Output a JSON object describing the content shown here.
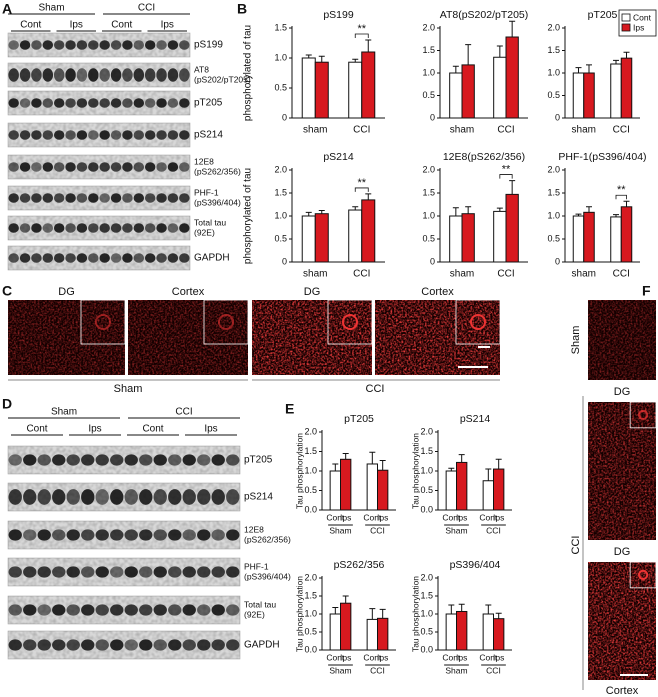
{
  "panel_labels": [
    "A",
    "B",
    "C",
    "D",
    "E",
    "F"
  ],
  "blot_a": {
    "groups": [
      "Sham",
      "CCI"
    ],
    "lanes": [
      "Cont",
      "Ips",
      "Cont",
      "Ips"
    ],
    "bands": [
      [
        "pS199"
      ],
      [
        "AT8",
        "(pS202/pT205)"
      ],
      [
        "pT205"
      ],
      [
        "pS214"
      ],
      [
        "12E8",
        "(pS262/356)"
      ],
      [
        "PHF-1",
        "(pS396/404)"
      ],
      [
        "Total tau",
        "(92E)"
      ],
      [
        "GAPDH"
      ]
    ]
  },
  "blot_d": {
    "groups": [
      "Sham",
      "CCI"
    ],
    "lanes": [
      "Cont",
      "Ips",
      "Cont",
      "Ips"
    ],
    "bands": [
      [
        "pT205"
      ],
      [
        "pS214"
      ],
      [
        "12E8",
        "(pS262/356)"
      ],
      [
        "PHF-1",
        "(pS396/404)"
      ],
      [
        "Total tau",
        "(92E)"
      ],
      [
        "GAPDH"
      ]
    ]
  },
  "micro_c": {
    "labels": [
      "DG",
      "Cortex",
      "DG",
      "Cortex"
    ],
    "groups": [
      "Sham",
      "CCI"
    ]
  },
  "micro_f": {
    "groups": [
      "Sham",
      "CCI"
    ],
    "labels": [
      "DG",
      "DG",
      "Cortex"
    ]
  },
  "chart_data": [
    {
      "type": "bar",
      "title": "pS199",
      "ylabel": "phosphorylated of tau",
      "categories": [
        "sham",
        "CCI"
      ],
      "series": [
        {
          "name": "Cont",
          "color": "#ffffff",
          "values": [
            1.0,
            0.93
          ],
          "errors": [
            0.05,
            0.05
          ]
        },
        {
          "name": "Ips",
          "color": "#d7191f",
          "values": [
            0.93,
            1.1
          ],
          "errors": [
            0.1,
            0.2
          ]
        }
      ],
      "ylim": [
        0,
        1.5
      ],
      "yticks": [
        0,
        0.5,
        {
          "value": 1,
          "label": "1.0"
        },
        1.5
      ],
      "annotation": "**"
    },
    {
      "type": "bar",
      "title": "AT8(pS202/pT205)",
      "categories": [
        "sham",
        "CCI"
      ],
      "series": [
        {
          "name": "Cont",
          "color": "#ffffff",
          "values": [
            1.0,
            1.35
          ],
          "errors": [
            0.15,
            0.25
          ]
        },
        {
          "name": "Ips",
          "color": "#d7191f",
          "values": [
            1.18,
            1.8
          ],
          "errors": [
            0.45,
            0.35
          ]
        }
      ],
      "ylim": [
        0,
        2
      ],
      "yticks": [
        0,
        0.5,
        {
          "value": 1,
          "label": "1.0"
        },
        1.5,
        {
          "value": 2,
          "label": "2.0"
        }
      ]
    },
    {
      "type": "bar",
      "title": "pT205",
      "categories": [
        "sham",
        "CCI"
      ],
      "series": [
        {
          "name": "Cont",
          "color": "#ffffff",
          "values": [
            1.0,
            1.2
          ],
          "errors": [
            0.12,
            0.08
          ]
        },
        {
          "name": "Ips",
          "color": "#d7191f",
          "values": [
            1.0,
            1.33
          ],
          "errors": [
            0.18,
            0.13
          ]
        }
      ],
      "ylim": [
        0,
        2
      ],
      "yticks": [
        0,
        0.5,
        {
          "value": 1,
          "label": "1.0"
        },
        1.5,
        {
          "value": 2,
          "label": "2.0"
        }
      ],
      "legend": "upper right"
    },
    {
      "type": "bar",
      "title": "pS214",
      "ylabel": "phosphorylated of tau",
      "categories": [
        "sham",
        "CCI"
      ],
      "series": [
        {
          "name": "Cont",
          "color": "#ffffff",
          "values": [
            1.0,
            1.13
          ],
          "errors": [
            0.08,
            0.07
          ]
        },
        {
          "name": "Ips",
          "color": "#d7191f",
          "values": [
            1.05,
            1.35
          ],
          "errors": [
            0.07,
            0.13
          ]
        }
      ],
      "ylim": [
        0,
        2
      ],
      "yticks": [
        0,
        0.5,
        {
          "value": 1,
          "label": "1.0"
        },
        1.5,
        {
          "value": 2,
          "label": "2.0"
        }
      ],
      "annotation": "**"
    },
    {
      "type": "bar",
      "title": "12E8(pS262/356)",
      "categories": [
        "sham",
        "CCI"
      ],
      "series": [
        {
          "name": "Cont",
          "color": "#ffffff",
          "values": [
            1.0,
            1.1
          ],
          "errors": [
            0.18,
            0.07
          ]
        },
        {
          "name": "Ips",
          "color": "#d7191f",
          "values": [
            1.05,
            1.47
          ],
          "errors": [
            0.15,
            0.3
          ]
        }
      ],
      "ylim": [
        0,
        2
      ],
      "yticks": [
        0,
        0.5,
        {
          "value": 1,
          "label": "1.0"
        },
        1.5,
        {
          "value": 2,
          "label": "2.0"
        }
      ],
      "annotation": "**"
    },
    {
      "type": "bar",
      "title": "PHF-1(pS396/404)",
      "categories": [
        "sham",
        "CCI"
      ],
      "series": [
        {
          "name": "Cont",
          "color": "#ffffff",
          "values": [
            1.0,
            0.98
          ],
          "errors": [
            0.04,
            0.05
          ]
        },
        {
          "name": "Ips",
          "color": "#d7191f",
          "values": [
            1.08,
            1.2
          ],
          "errors": [
            0.12,
            0.12
          ]
        }
      ],
      "ylim": [
        0,
        2
      ],
      "yticks": [
        0,
        0.5,
        {
          "value": 1,
          "label": "1.0"
        },
        1.5,
        {
          "value": 2,
          "label": "2.0"
        }
      ],
      "annotation": "**"
    },
    {
      "type": "bar",
      "title": "pT205",
      "ylabel": "Tau phosphorylation",
      "categories": [
        "Sham",
        "CCI"
      ],
      "series_labels": true,
      "series": [
        {
          "name": "Cont",
          "color": "#ffffff",
          "values": [
            1.0,
            1.18
          ],
          "errors": [
            0.18,
            0.3
          ]
        },
        {
          "name": "Ips",
          "color": "#d7191f",
          "values": [
            1.3,
            1.02
          ],
          "errors": [
            0.15,
            0.25
          ]
        }
      ],
      "ylim": [
        0,
        2
      ],
      "yticks": [
        {
          "value": 0,
          "label": "0.0"
        },
        0.5,
        {
          "value": 1,
          "label": "1.0"
        },
        1.5,
        {
          "value": 2,
          "label": "2.0"
        }
      ]
    },
    {
      "type": "bar",
      "title": "pS214",
      "ylabel": "Tau phosphorylation",
      "categories": [
        "Sham",
        "CCI"
      ],
      "series_labels": true,
      "series": [
        {
          "name": "Cont",
          "color": "#ffffff",
          "values": [
            1.0,
            0.75
          ],
          "errors": [
            0.07,
            0.3
          ]
        },
        {
          "name": "Ips",
          "color": "#d7191f",
          "values": [
            1.22,
            1.05
          ],
          "errors": [
            0.2,
            0.25
          ]
        }
      ],
      "ylim": [
        0,
        2
      ],
      "yticks": [
        {
          "value": 0,
          "label": "0.0"
        },
        0.5,
        {
          "value": 1,
          "label": "1.0"
        },
        1.5,
        {
          "value": 2,
          "label": "2.0"
        }
      ]
    },
    {
      "type": "bar",
      "title": "pS262/356",
      "ylabel": "Tau phosphorylation",
      "categories": [
        "Sham",
        "CCI"
      ],
      "series_labels": true,
      "series": [
        {
          "name": "Cont",
          "color": "#ffffff",
          "values": [
            1.0,
            0.85
          ],
          "errors": [
            0.18,
            0.3
          ]
        },
        {
          "name": "Ips",
          "color": "#d7191f",
          "values": [
            1.3,
            0.88
          ],
          "errors": [
            0.2,
            0.25
          ]
        }
      ],
      "ylim": [
        0,
        2
      ],
      "yticks": [
        {
          "value": 0,
          "label": "0.0"
        },
        0.5,
        {
          "value": 1,
          "label": "1.0"
        },
        1.5,
        {
          "value": 2,
          "label": "2.0"
        }
      ]
    },
    {
      "type": "bar",
      "title": "pS396/404",
      "ylabel": "Tau phosphorylation",
      "categories": [
        "Sham",
        "CCI"
      ],
      "series_labels": true,
      "series": [
        {
          "name": "Cont",
          "color": "#ffffff",
          "values": [
            1.0,
            1.0
          ],
          "errors": [
            0.25,
            0.25
          ]
        },
        {
          "name": "Ips",
          "color": "#d7191f",
          "values": [
            1.07,
            0.87
          ],
          "errors": [
            0.2,
            0.15
          ]
        }
      ],
      "ylim": [
        0,
        2
      ],
      "yticks": [
        {
          "value": 0,
          "label": "0.0"
        },
        0.5,
        {
          "value": 1,
          "label": "1.0"
        },
        1.5,
        {
          "value": 2,
          "label": "2.0"
        }
      ]
    }
  ]
}
